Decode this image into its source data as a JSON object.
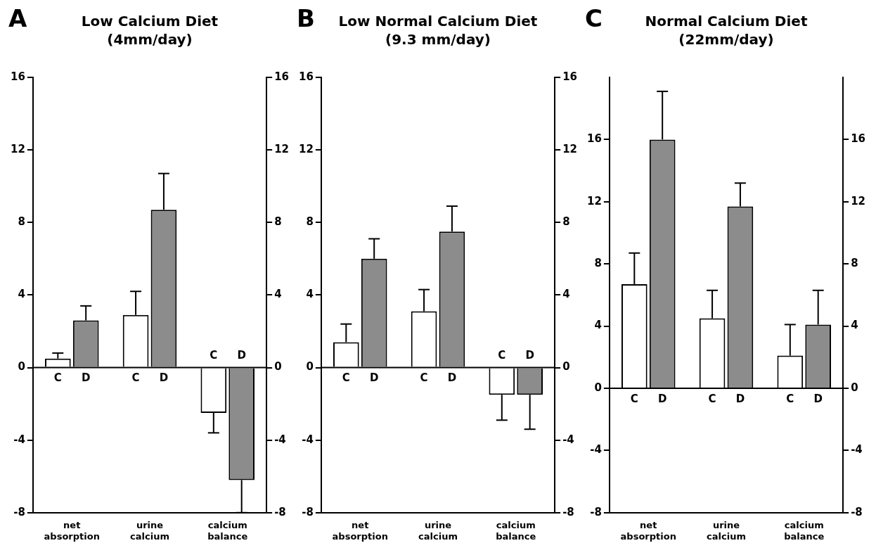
{
  "chart_data": [
    {
      "type": "bar",
      "title": "Low Calcium Diet",
      "subtitle": "(4mm/day)",
      "annotations": [
        "A"
      ],
      "categories": [
        "net absorption",
        "urine calcium",
        "calcium balance"
      ],
      "ylim": [
        -8,
        16
      ],
      "yticks": [
        -8,
        -4,
        0,
        4,
        8,
        12,
        16
      ],
      "y2lim": [
        -8,
        16
      ],
      "y2ticks": [
        -8,
        -4,
        0,
        4,
        8,
        12,
        16
      ],
      "legend": false,
      "series": [
        {
          "name": "C",
          "color": "#ffffff",
          "values": [
            0.5,
            2.9,
            -2.5
          ],
          "errors": [
            [
              0.5,
              0.8
            ],
            [
              2.9,
              4.2
            ],
            [
              -3.6,
              -2.5
            ]
          ]
        },
        {
          "name": "D",
          "color": "#8c8c8c",
          "values": [
            2.6,
            8.7,
            -6.2
          ],
          "errors": [
            [
              2.6,
              3.4
            ],
            [
              8.7,
              10.7
            ],
            [
              -8,
              -6.2
            ]
          ]
        }
      ]
    },
    {
      "type": "bar",
      "title": "Low Normal Calcium Diet",
      "subtitle": "(9.3 mm/day)",
      "annotations": [
        "B"
      ],
      "categories": [
        "net absorption",
        "urine calcium",
        "calcium balance"
      ],
      "ylim": [
        -8,
        16
      ],
      "yticks": [
        -8,
        -4,
        0,
        4,
        8,
        12,
        16
      ],
      "y2lim": [
        -8,
        16
      ],
      "y2ticks": [
        -8,
        -4,
        0,
        4,
        8,
        12,
        16
      ],
      "legend": false,
      "series": [
        {
          "name": "C",
          "color": "#ffffff",
          "values": [
            1.4,
            3.1,
            -1.5
          ],
          "errors": [
            [
              1.4,
              2.4
            ],
            [
              3.1,
              4.3
            ],
            [
              -2.9,
              -1.5
            ]
          ]
        },
        {
          "name": "D",
          "color": "#8c8c8c",
          "values": [
            6.0,
            7.5,
            -1.5
          ],
          "errors": [
            [
              6.0,
              7.1
            ],
            [
              7.5,
              8.9
            ],
            [
              -3.4,
              -1.5
            ]
          ]
        }
      ]
    },
    {
      "type": "bar",
      "title": "Normal Calcium Diet",
      "subtitle": "(22mm/day)",
      "annotations": [
        "C"
      ],
      "categories": [
        "net absorption",
        "urine calcium",
        "calcium balance"
      ],
      "ylim": [
        -8,
        20
      ],
      "yticks": [
        -8,
        -4,
        0,
        4,
        8,
        12,
        16
      ],
      "y2lim": [
        -8,
        20
      ],
      "y2ticks": [
        -8,
        -4,
        0,
        4,
        8,
        12,
        16
      ],
      "legend": false,
      "series": [
        {
          "name": "C",
          "color": "#ffffff",
          "values": [
            6.7,
            4.5,
            2.1
          ],
          "errors": [
            [
              6.7,
              8.7
            ],
            [
              4.5,
              6.3
            ],
            [
              2.1,
              4.1
            ]
          ]
        },
        {
          "name": "D",
          "color": "#8c8c8c",
          "values": [
            16,
            11.7,
            4.1
          ],
          "errors": [
            [
              16,
              19.1
            ],
            [
              11.7,
              13.2
            ],
            [
              4.1,
              6.3
            ]
          ]
        }
      ]
    }
  ]
}
